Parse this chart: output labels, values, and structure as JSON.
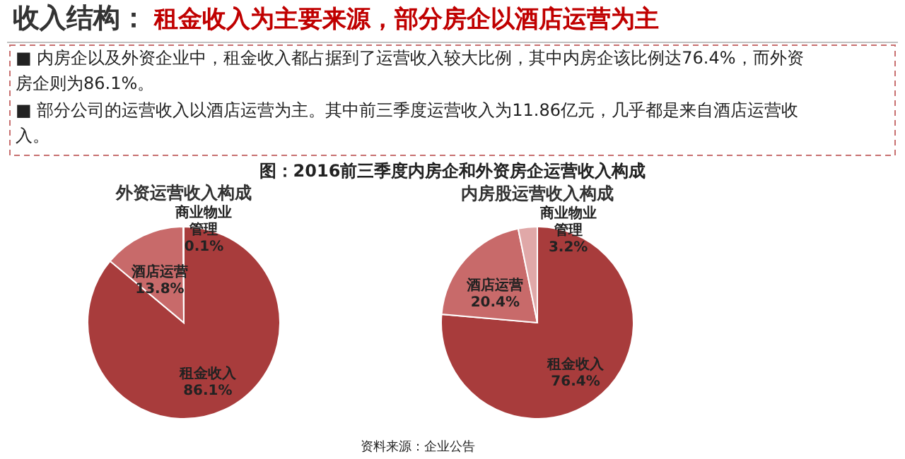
{
  "chart_data": [
    {
      "type": "pie",
      "title": "外资运营收入构成",
      "categories": [
        "租金收入",
        "酒店运营",
        "商业物业管理"
      ],
      "values": [
        86.1,
        13.8,
        0.1
      ],
      "value_labels": [
        "86.1%",
        "13.8%",
        "0.1%"
      ],
      "colors": [
        "#a83c3c",
        "#c86a6a",
        "#e0a8a8"
      ],
      "legend": false,
      "annotations": [
        "收入结构：",
        "租金收入为主要来源，部分房企以酒店运营为主",
        "■ 内房企以及外资企业中，租金收入都占据到了运营收入较大比例，其中内房企该比例达76.4%，而外资房企则为86.1%。",
        "■ 部分公司的运营收入以酒店运营为主。其中前三季度运营收入为11.86亿元，几乎都是来自酒店运营收入。",
        "图：2016前三季度内房企和外资房企运营收入构成",
        "资料来源：企业公告"
      ]
    },
    {
      "type": "pie",
      "title": "内房股运营收入构成",
      "categories": [
        "租金收入",
        "酒店运营",
        "商业物业管理"
      ],
      "values": [
        76.4,
        20.4,
        3.2
      ],
      "value_labels": [
        "76.4%",
        "20.4%",
        "3.2%"
      ],
      "colors": [
        "#a83c3c",
        "#c86a6a",
        "#e0a8a8"
      ],
      "legend": false
    }
  ]
}
